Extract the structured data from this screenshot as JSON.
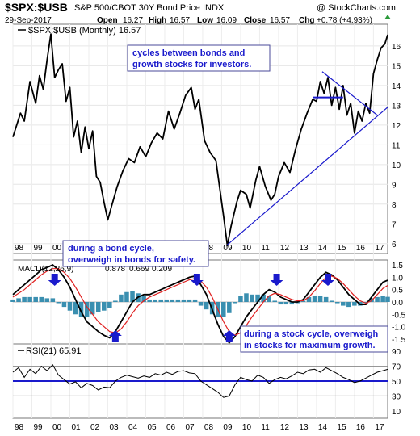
{
  "header": {
    "symbol": "$SPX:$USB",
    "description": "S&P 500/CBOT 30Y Bond Price INDX",
    "source": "@ StockCharts.com",
    "date": "29-Sep-2017",
    "open_label": "Open",
    "open": "16.27",
    "high_label": "High",
    "high": "16.57",
    "low_label": "Low",
    "low": "16.09",
    "close_label": "Close",
    "close": "16.57",
    "chg_label": "Chg",
    "chg": "+0.78 (+4.93%)"
  },
  "colors": {
    "price": "#000000",
    "trendline": "#1a1acc",
    "macd": "#000000",
    "signal": "#e02020",
    "histogram": "#3a8fb0",
    "rsi": "#000000",
    "rsi_midline": "#1a1acc",
    "annotation_text": "#1a1acc",
    "arrow": "#1a1acc"
  },
  "annotations": [
    {
      "lines": [
        "cycles between bonds and",
        "growth stocks for investors."
      ]
    },
    {
      "lines": [
        "during a bond cycle,",
        "overweigh in bonds for safety."
      ]
    },
    {
      "lines": [
        "during a stock cycle, overweigh",
        "in stocks for maximum growth."
      ]
    }
  ],
  "chart_data": [
    {
      "type": "line",
      "legend": "$SPX:$USB (Monthly) 16.57",
      "x_tick_labels": [
        "98",
        "99",
        "00",
        "01",
        "02",
        "03",
        "04",
        "05",
        "06",
        "07",
        "08",
        "09",
        "10",
        "11",
        "12",
        "13",
        "14",
        "15",
        "16",
        "17"
      ],
      "y_ticks": [
        6,
        7,
        8,
        9,
        10,
        11,
        12,
        13,
        14,
        15,
        16
      ],
      "ylim": [
        5.5,
        17.1
      ],
      "series": [
        {
          "x": [
            1998.0,
            1998.4,
            1998.6,
            1998.9,
            1999.2,
            1999.4,
            1999.6,
            1999.8,
            2000.0,
            2000.2,
            2000.4,
            2000.6,
            2000.8,
            2001.0,
            2001.2,
            2001.4,
            2001.6,
            2001.8,
            2002.0,
            2002.2,
            2002.4,
            2002.6,
            2002.8,
            2003.0,
            2003.2,
            2003.5,
            2003.8,
            2004.1,
            2004.4,
            2004.7,
            2005.0,
            2005.3,
            2005.6,
            2005.9,
            2006.2,
            2006.5,
            2006.8,
            2007.1,
            2007.4,
            2007.6,
            2007.8,
            2008.1,
            2008.4,
            2008.7,
            2008.9,
            2009.1,
            2009.3,
            2009.5,
            2009.8,
            2010.0,
            2010.3,
            2010.5,
            2010.8,
            2011.0,
            2011.3,
            2011.6,
            2011.8,
            2012.0,
            2012.3,
            2012.6,
            2012.9,
            2013.2,
            2013.5,
            2013.8,
            2014.0,
            2014.2,
            2014.4,
            2014.6,
            2014.8,
            2015.0,
            2015.2,
            2015.4,
            2015.6,
            2015.8,
            2016.0,
            2016.2,
            2016.4,
            2016.6,
            2016.8,
            2017.0,
            2017.2,
            2017.4,
            2017.6,
            2017.75
          ],
          "values": [
            11.4,
            12.6,
            12.2,
            14.2,
            13.1,
            14.5,
            13.8,
            15.3,
            16.6,
            14.4,
            14.8,
            15.1,
            13.2,
            13.9,
            11.4,
            12.2,
            10.6,
            11.9,
            10.8,
            11.7,
            9.4,
            9.1,
            8.1,
            7.2,
            7.9,
            8.9,
            9.7,
            10.3,
            10.1,
            10.9,
            10.4,
            11.1,
            11.6,
            11.3,
            12.7,
            11.8,
            12.6,
            13.5,
            13.9,
            12.8,
            13.3,
            11.2,
            10.6,
            10.2,
            8.8,
            7.4,
            5.9,
            6.9,
            8.1,
            8.7,
            8.5,
            7.8,
            9.2,
            9.9,
            8.9,
            8.2,
            8.5,
            9.4,
            10.1,
            9.6,
            10.8,
            11.8,
            12.6,
            13.3,
            13.2,
            14.2,
            13.6,
            14.4,
            13.0,
            13.9,
            12.8,
            14.0,
            12.5,
            13.1,
            11.6,
            12.7,
            12.2,
            13.1,
            12.6,
            14.6,
            15.3,
            15.9,
            16.1,
            16.57
          ]
        }
      ],
      "trendlines": [
        {
          "x": [
            2009.25,
            2017.75
          ],
          "y": [
            5.9,
            12.9
          ]
        },
        {
          "x": [
            2014.3,
            2017.2
          ],
          "y": [
            14.7,
            12.5
          ]
        },
        {
          "x": [
            2013.8,
            2015.4
          ],
          "y": [
            13.4,
            13.4
          ]
        }
      ]
    },
    {
      "type": "line",
      "legend": "MACD(12,26,9)",
      "legend_macd": "0.878",
      "legend_signal": "0.669",
      "legend_hist": "0.209",
      "y_ticks": [
        -1.5,
        -1.0,
        -0.5,
        0.0,
        0.5,
        1.0,
        1.5
      ],
      "ylim": [
        -1.7,
        1.7
      ],
      "x": [
        1998.0,
        1998.3,
        1998.6,
        1998.9,
        1999.2,
        1999.5,
        1999.8,
        2000.1,
        2000.4,
        2000.7,
        2001.0,
        2001.3,
        2001.6,
        2001.9,
        2002.2,
        2002.5,
        2002.8,
        2003.1,
        2003.4,
        2003.7,
        2004.0,
        2004.3,
        2004.6,
        2004.9,
        2005.2,
        2005.5,
        2005.8,
        2006.1,
        2006.4,
        2006.7,
        2007.0,
        2007.3,
        2007.6,
        2007.9,
        2008.2,
        2008.5,
        2008.8,
        2009.1,
        2009.4,
        2009.7,
        2010.0,
        2010.3,
        2010.6,
        2010.9,
        2011.2,
        2011.5,
        2011.8,
        2012.1,
        2012.4,
        2012.7,
        2013.0,
        2013.3,
        2013.6,
        2013.9,
        2014.2,
        2014.5,
        2014.8,
        2015.1,
        2015.4,
        2015.7,
        2016.0,
        2016.3,
        2016.6,
        2016.9,
        2017.2,
        2017.5,
        2017.75
      ],
      "series": [
        {
          "role": "macd",
          "values": [
            0.3,
            0.5,
            0.7,
            0.9,
            1.1,
            1.3,
            1.4,
            1.5,
            1.3,
            1.0,
            0.6,
            0.1,
            -0.4,
            -0.8,
            -1.0,
            -1.2,
            -1.35,
            -1.45,
            -1.2,
            -0.8,
            -0.4,
            0.0,
            0.2,
            0.3,
            0.3,
            0.4,
            0.5,
            0.6,
            0.7,
            0.8,
            0.9,
            1.0,
            1.05,
            0.7,
            0.3,
            -0.3,
            -0.9,
            -1.4,
            -1.65,
            -1.4,
            -1.0,
            -0.6,
            -0.3,
            0.0,
            0.3,
            0.5,
            0.4,
            0.2,
            0.1,
            0.0,
            0.0,
            0.1,
            0.4,
            0.7,
            1.0,
            1.2,
            1.1,
            0.9,
            0.6,
            0.3,
            0.1,
            -0.1,
            -0.1,
            0.2,
            0.5,
            0.8,
            0.878
          ]
        },
        {
          "role": "signal",
          "values": [
            0.2,
            0.35,
            0.5,
            0.7,
            0.9,
            1.1,
            1.25,
            1.35,
            1.35,
            1.2,
            0.95,
            0.6,
            0.2,
            -0.2,
            -0.5,
            -0.8,
            -1.0,
            -1.2,
            -1.25,
            -1.1,
            -0.8,
            -0.45,
            -0.15,
            0.05,
            0.2,
            0.3,
            0.4,
            0.5,
            0.6,
            0.7,
            0.8,
            0.9,
            0.95,
            0.85,
            0.6,
            0.2,
            -0.3,
            -0.8,
            -1.2,
            -1.35,
            -1.25,
            -0.95,
            -0.6,
            -0.3,
            0.0,
            0.25,
            0.35,
            0.3,
            0.2,
            0.1,
            0.05,
            0.05,
            0.2,
            0.45,
            0.75,
            1.0,
            1.05,
            0.95,
            0.75,
            0.5,
            0.25,
            0.05,
            -0.05,
            0.05,
            0.3,
            0.55,
            0.669
          ]
        },
        {
          "role": "histogram",
          "values": [
            0.1,
            0.15,
            0.2,
            0.2,
            0.2,
            0.2,
            0.15,
            0.15,
            -0.05,
            -0.2,
            -0.35,
            -0.5,
            -0.6,
            -0.6,
            -0.5,
            -0.4,
            -0.35,
            -0.25,
            0.05,
            0.3,
            0.4,
            0.45,
            0.35,
            0.25,
            0.1,
            0.1,
            0.1,
            0.1,
            0.1,
            0.1,
            0.1,
            0.1,
            0.1,
            -0.15,
            -0.3,
            -0.5,
            -0.6,
            -0.6,
            -0.45,
            -0.05,
            0.25,
            0.35,
            0.3,
            0.3,
            0.3,
            0.25,
            0.05,
            -0.1,
            -0.1,
            -0.1,
            -0.05,
            0.05,
            0.2,
            0.25,
            0.25,
            0.2,
            0.05,
            -0.05,
            -0.15,
            -0.2,
            -0.15,
            -0.15,
            -0.05,
            0.15,
            0.2,
            0.25,
            0.209
          ]
        }
      ],
      "arrows": [
        {
          "x": 2000.2,
          "direction": "down"
        },
        {
          "x": 2003.4,
          "direction": "up"
        },
        {
          "x": 2007.7,
          "direction": "down"
        },
        {
          "x": 2009.4,
          "direction": "up"
        },
        {
          "x": 2011.9,
          "direction": "down"
        },
        {
          "x": 2013.1,
          "direction": "up"
        },
        {
          "x": 2014.6,
          "direction": "down"
        },
        {
          "x": 2016.5,
          "direction": "up"
        }
      ]
    },
    {
      "type": "line",
      "legend": "RSI(21) 65.91",
      "y_ticks": [
        10,
        30,
        50,
        70,
        90
      ],
      "ylim": [
        0,
        100
      ],
      "x_tick_labels": [
        "98",
        "99",
        "00",
        "01",
        "02",
        "03",
        "04",
        "05",
        "06",
        "07",
        "08",
        "09",
        "10",
        "11",
        "12",
        "13",
        "14",
        "15",
        "16",
        "17"
      ],
      "reference_lines": [
        70,
        50,
        30
      ],
      "x": [
        1998.0,
        1998.3,
        1998.6,
        1998.9,
        1999.2,
        1999.5,
        1999.8,
        2000.1,
        2000.4,
        2000.7,
        2001.0,
        2001.3,
        2001.6,
        2001.9,
        2002.2,
        2002.5,
        2002.8,
        2003.1,
        2003.4,
        2003.7,
        2004.0,
        2004.3,
        2004.6,
        2004.9,
        2005.2,
        2005.5,
        2005.8,
        2006.1,
        2006.4,
        2006.7,
        2007.0,
        2007.3,
        2007.6,
        2007.9,
        2008.2,
        2008.5,
        2008.8,
        2009.1,
        2009.4,
        2009.7,
        2010.0,
        2010.3,
        2010.6,
        2010.9,
        2011.2,
        2011.5,
        2011.8,
        2012.1,
        2012.4,
        2012.7,
        2013.0,
        2013.3,
        2013.6,
        2013.9,
        2014.2,
        2014.5,
        2014.8,
        2015.1,
        2015.4,
        2015.7,
        2016.0,
        2016.3,
        2016.6,
        2016.9,
        2017.2,
        2017.5,
        2017.75
      ],
      "values": [
        62,
        68,
        55,
        66,
        60,
        70,
        64,
        72,
        58,
        52,
        46,
        49,
        41,
        47,
        44,
        38,
        42,
        41,
        50,
        55,
        58,
        56,
        54,
        57,
        55,
        60,
        58,
        62,
        59,
        63,
        64,
        61,
        60,
        50,
        45,
        40,
        35,
        28,
        30,
        45,
        55,
        52,
        50,
        58,
        55,
        47,
        52,
        55,
        53,
        57,
        62,
        60,
        65,
        66,
        62,
        68,
        64,
        60,
        55,
        52,
        48,
        50,
        54,
        58,
        62,
        64,
        65.91
      ]
    }
  ]
}
